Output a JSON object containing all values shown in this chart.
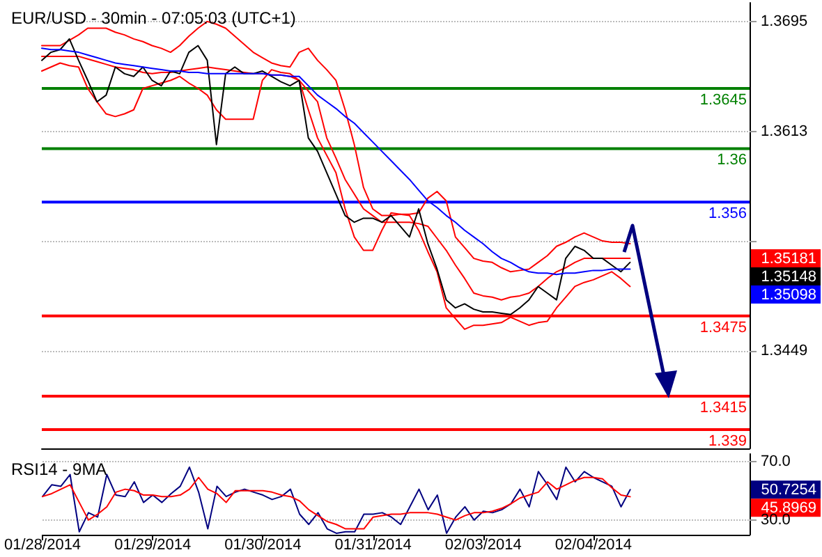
{
  "chart_data": [
    {
      "type": "line",
      "title": "EUR/USD - 30min - 07:05:03 (UTC+1)",
      "categories": [
        null,
        null,
        null,
        null,
        null,
        null,
        null,
        null,
        null,
        null,
        null,
        null,
        null,
        null,
        null,
        null,
        null,
        null,
        null,
        null,
        null,
        null,
        null,
        null,
        null,
        null,
        null,
        null,
        null,
        null,
        null,
        null,
        null,
        null,
        null,
        null,
        null,
        null,
        null,
        null,
        null,
        null,
        null,
        null,
        null,
        null,
        null,
        null,
        null,
        null,
        null,
        null,
        null,
        null,
        null,
        null,
        null,
        null,
        null,
        null,
        null,
        null,
        null,
        null,
        null,
        null,
        null,
        null,
        null,
        null,
        null,
        null,
        null,
        null,
        null,
        null,
        null,
        null
      ],
      "ylim": [
        1.3376,
        1.3709
      ],
      "yticks": [
        1.3449,
        {
          "value": 1.3531,
          "label": null
        },
        1.3613,
        1.3695
      ],
      "tick_labels": "y",
      "grid": "y",
      "marker": "none",
      "line_style": "solid",
      "series": [
        {
          "color": "#ff0000",
          "values": [
            1.3677,
            1.3677,
            1.3677,
            1.3681,
            1.3685,
            1.369,
            1.369,
            1.369,
            1.3687,
            1.3685,
            1.3682,
            1.368,
            1.3677,
            1.3675,
            1.3672,
            1.3677,
            1.3684,
            1.369,
            1.3695,
            1.3693,
            1.369,
            1.3684,
            1.3678,
            1.3672,
            1.3668,
            1.3664,
            1.3662,
            1.3661,
            1.3672,
            1.3675,
            1.3666,
            1.3659,
            1.3651,
            1.3629,
            1.3603,
            1.3571,
            1.3555,
            1.355,
            1.355,
            1.3551,
            1.3551,
            1.3552,
            1.3563,
            1.3568,
            1.3561,
            1.3534,
            1.3526,
            1.3518,
            1.3516,
            1.3515,
            1.3511,
            1.3508,
            1.3509,
            1.351,
            1.3515,
            1.352,
            1.3527,
            1.353,
            1.3534,
            1.3537,
            1.3534,
            1.3531,
            1.353,
            1.353,
            1.3529,
            null,
            null,
            null,
            null,
            null,
            null,
            null,
            null,
            null,
            null,
            null,
            null,
            null
          ]
        },
        {
          "color": "#ff0000",
          "values": [
            1.3658,
            1.3661,
            1.3664,
            1.3662,
            1.3661,
            1.3645,
            1.3635,
            1.3626,
            1.3624,
            1.3626,
            1.3629,
            1.3645,
            1.3647,
            1.3649,
            1.3651,
            1.3654,
            1.3649,
            1.3645,
            1.364,
            1.3629,
            1.3622,
            1.3622,
            1.3622,
            1.3622,
            1.3651,
            1.3659,
            1.3657,
            1.3656,
            1.3651,
            1.3629,
            1.3608,
            1.3595,
            1.3582,
            1.3555,
            1.3534,
            1.3524,
            1.3524,
            1.3539,
            1.3552,
            1.3551,
            1.355,
            1.3539,
            1.3523,
            1.3508,
            1.3481,
            1.3473,
            1.3465,
            1.3468,
            1.3468,
            1.3469,
            1.347,
            1.3474,
            1.3471,
            1.3468,
            1.347,
            1.3471,
            1.3481,
            1.3489,
            1.3497,
            1.35,
            1.3502,
            1.3505,
            1.3508,
            1.3503,
            1.3497,
            null,
            null,
            null,
            null,
            null,
            null,
            null,
            null,
            null,
            null,
            null,
            null,
            null
          ]
        },
        {
          "color": "#ff0000",
          "values": [
            1.3669,
            1.3669,
            1.3669,
            1.3669,
            1.3669,
            1.3667,
            1.3665,
            1.3663,
            1.3661,
            1.366,
            1.3659,
            1.3657,
            1.3656,
            1.3657,
            1.3657,
            1.3658,
            1.3659,
            1.366,
            1.3661,
            1.366,
            1.3659,
            1.3658,
            1.3657,
            1.3656,
            1.3656,
            1.3655,
            1.3655,
            1.3654,
            1.3651,
            1.3643,
            1.3635,
            1.3608,
            1.3593,
            1.3577,
            1.3566,
            1.3555,
            1.355,
            1.3545,
            1.3545,
            1.3545,
            1.3545,
            1.3544,
            1.3542,
            1.3533,
            1.3524,
            1.3513,
            1.3503,
            1.3492,
            1.349,
            1.3489,
            1.3487,
            1.3489,
            1.349,
            1.3492,
            1.3497,
            1.3503,
            1.3508,
            1.3511,
            1.3515,
            1.3518,
            1.3518,
            1.3518,
            1.3518,
            1.3518,
            1.3518,
            null,
            null,
            null,
            null,
            null,
            null,
            null,
            null,
            null,
            null,
            null,
            null,
            null
          ]
        },
        {
          "color": "#000000",
          "values": [
            1.3666,
            1.3672,
            1.3674,
            1.3682,
            1.3666,
            1.3651,
            1.3635,
            1.364,
            1.3661,
            1.3656,
            1.3654,
            1.3661,
            1.3651,
            1.3647,
            1.3658,
            1.3656,
            1.3672,
            1.3677,
            1.3666,
            1.3603,
            1.3656,
            1.3661,
            1.3656,
            1.3656,
            1.3658,
            1.3654,
            1.365,
            1.3647,
            1.3651,
            1.3608,
            1.3598,
            1.3582,
            1.3566,
            1.355,
            1.3545,
            1.3548,
            1.3548,
            1.3545,
            1.355,
            1.3542,
            1.3534,
            1.3555,
            1.3529,
            1.351,
            1.3487,
            1.3481,
            1.3484,
            1.348,
            1.3478,
            1.3478,
            1.3477,
            1.3476,
            1.3481,
            1.3487,
            1.3497,
            1.3492,
            1.3487,
            1.3518,
            1.3527,
            1.3524,
            1.3518,
            1.3518,
            1.3513,
            1.3508,
            1.3515,
            null,
            null,
            null,
            null,
            null,
            null,
            null,
            null,
            null,
            null,
            null,
            null,
            null
          ]
        },
        {
          "color": "#0000ff",
          "values": [
            1.3675,
            1.3674,
            1.3674,
            1.3673,
            1.3672,
            1.367,
            1.3668,
            1.3666,
            1.3664,
            1.3663,
            1.3662,
            1.3661,
            1.366,
            1.3659,
            1.3658,
            1.3658,
            1.3657,
            1.3657,
            1.3656,
            1.3656,
            1.3656,
            1.3656,
            1.3656,
            1.3656,
            1.3656,
            1.3655,
            1.3655,
            1.3654,
            1.3654,
            1.3647,
            1.364,
            1.3635,
            1.363,
            1.3624,
            1.3619,
            1.3612,
            1.3605,
            1.3598,
            1.3591,
            1.3584,
            1.3577,
            1.3569,
            1.3561,
            1.3556,
            1.355,
            1.3545,
            1.3539,
            1.3534,
            1.3529,
            1.3523,
            1.3518,
            1.3515,
            1.3511,
            1.3508,
            1.3507,
            1.3507,
            1.3506,
            1.3507,
            1.3507,
            1.3508,
            1.3509,
            1.3509,
            1.351,
            1.351,
            1.351,
            null,
            null,
            null,
            null,
            null,
            null,
            null,
            null,
            null,
            null,
            null,
            null,
            null
          ]
        }
      ],
      "ref_lines": [
        {
          "axis": "y",
          "value": 1.3645,
          "label": "1.3645",
          "color": "#008000"
        },
        {
          "axis": "y",
          "value": 1.36,
          "label": "1.36",
          "color": "#008000"
        },
        {
          "axis": "y",
          "value": 1.356,
          "label": "1.356",
          "color": "#0000ff"
        },
        {
          "axis": "y",
          "value": 1.3475,
          "label": "1.3475",
          "color": "#ff0000"
        },
        {
          "axis": "y",
          "value": 1.3415,
          "label": "1.3415",
          "color": "#ff0000"
        },
        {
          "axis": "y",
          "value": 1.339,
          "label": "1.339",
          "color": "#ff0000"
        }
      ],
      "annotations": [
        "1.35181",
        "1.35148",
        "1.35098"
      ]
    },
    {
      "type": "line",
      "title": "RSI14 - 9MA",
      "categories": [
        "01/28/2014",
        null,
        null,
        null,
        null,
        null,
        null,
        null,
        null,
        null,
        null,
        null,
        "01/29/2014",
        null,
        null,
        null,
        null,
        null,
        null,
        null,
        null,
        null,
        null,
        null,
        "01/30/2014",
        null,
        null,
        null,
        null,
        null,
        null,
        null,
        null,
        null,
        null,
        null,
        "01/31/2014",
        null,
        null,
        null,
        null,
        null,
        null,
        null,
        null,
        null,
        null,
        null,
        "02/03/2014",
        null,
        null,
        null,
        null,
        null,
        null,
        null,
        null,
        null,
        null,
        null,
        "02/04/2014",
        null,
        null,
        null,
        null,
        null,
        null,
        null,
        null,
        null,
        null,
        null,
        null,
        null,
        null,
        null,
        null,
        null
      ],
      "ylim": [
        20,
        75
      ],
      "yticks": [
        {
          "value": 30,
          "label": "30.0"
        },
        {
          "value": 70,
          "label": "70.0"
        }
      ],
      "grid": "y",
      "marker": "none",
      "line_style": "solid",
      "series": [
        {
          "color": "#000080",
          "values": [
            46,
            54,
            53,
            61,
            22,
            35,
            32,
            61,
            47,
            46,
            56,
            42,
            47,
            42,
            48,
            53,
            66,
            49,
            24,
            53,
            46,
            49,
            51,
            49,
            47,
            44,
            46,
            51,
            34,
            27,
            35,
            24,
            21,
            22,
            22,
            34,
            34,
            35,
            32,
            27,
            39,
            51,
            37,
            47,
            21,
            32,
            39,
            30,
            36,
            35,
            37,
            41,
            51,
            39,
            63,
            54,
            44,
            66,
            56,
            63,
            59,
            56,
            53,
            39,
            50.7254,
            null,
            null,
            null,
            null,
            null,
            null,
            null,
            null,
            null,
            null,
            null,
            null,
            null
          ]
        },
        {
          "color": "#ff0000",
          "values": [
            46,
            48,
            51,
            54,
            42,
            30,
            34,
            39,
            49,
            51,
            50,
            47,
            47,
            46,
            46,
            47,
            51,
            59,
            51,
            48,
            42,
            50,
            50,
            50,
            50,
            49,
            47,
            46,
            43,
            37,
            33,
            29,
            27,
            24,
            24,
            24,
            32,
            33,
            34,
            34,
            35,
            35,
            35,
            34,
            32,
            30,
            33,
            35,
            35,
            36,
            38,
            41,
            45,
            47,
            49,
            56,
            51,
            54,
            57,
            59,
            59,
            58,
            52,
            47,
            45.8969,
            null,
            null,
            null,
            null,
            null,
            null,
            null,
            null,
            null,
            null,
            null,
            null,
            null
          ]
        }
      ],
      "annotations": [
        "50.7254",
        "45.8969"
      ]
    }
  ]
}
